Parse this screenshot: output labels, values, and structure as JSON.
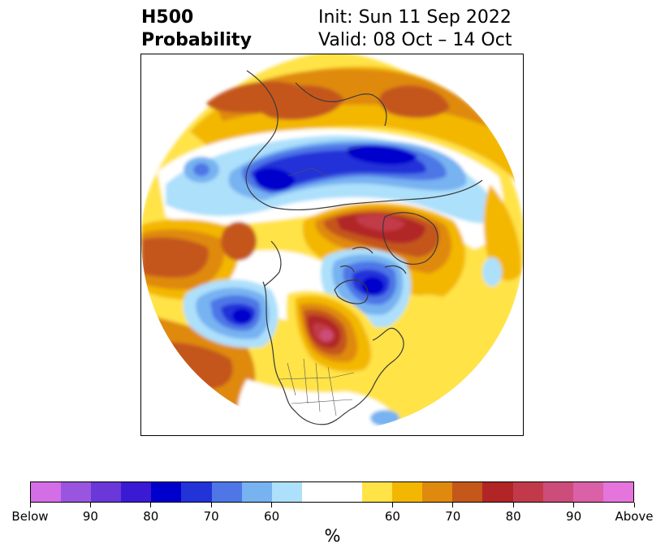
{
  "title": {
    "left_line1": "H500",
    "left_line2": "Probability",
    "init": "Init: Sun 11 Sep 2022",
    "valid": "Valid: 08 Oct – 14 Oct"
  },
  "colorbar": {
    "colors": [
      "#d36ee7",
      "#9a55e0",
      "#6a37d8",
      "#3a1ad3",
      "#0000cc",
      "#2233d8",
      "#4e76e6",
      "#77b2f1",
      "#ade0fb",
      "#ffffff",
      "#ffe347",
      "#f3b702",
      "#df8a0e",
      "#c4571a",
      "#b12526",
      "#c23a4a",
      "#cc4d79",
      "#da60a8",
      "#e574dc"
    ],
    "tick_labels": [
      "Below",
      "90",
      "80",
      "70",
      "60",
      "60",
      "70",
      "80",
      "90",
      "Above"
    ],
    "unit_label": "%"
  },
  "map_colors": {
    "above_60": "#ffe347",
    "above_65": "#f3b702",
    "above_70": "#df8a0e",
    "above_75": "#c4571a",
    "above_80": "#b12526",
    "above_85": "#c23a4a",
    "above_90": "#cc4d79",
    "below_60": "#ade0fb",
    "below_65": "#77b2f1",
    "below_70": "#4e76e6",
    "below_75": "#2233d8",
    "below_80": "#0000cc",
    "coastline": "#3a3a3a"
  }
}
